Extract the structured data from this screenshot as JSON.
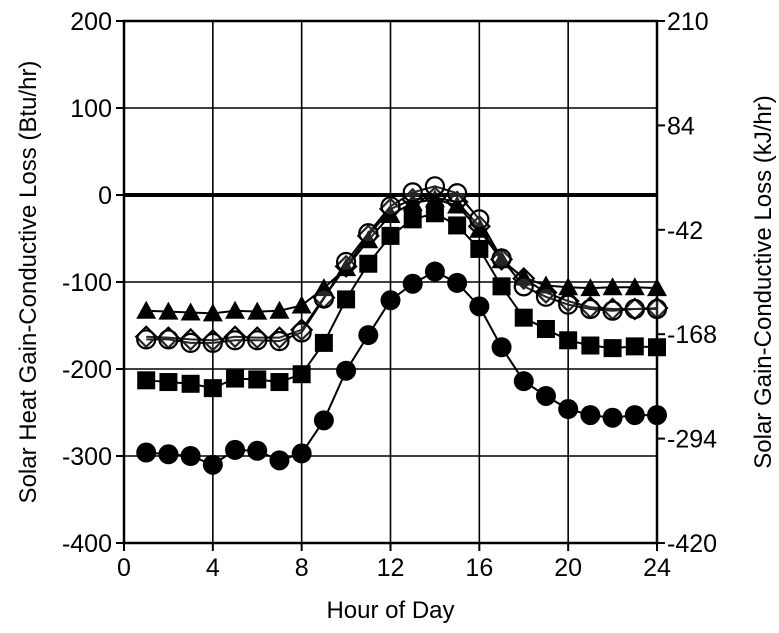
{
  "chart_data": {
    "type": "line",
    "title": "",
    "xlabel": "Hour of Day",
    "ylabel": "Solar Heat Gain-Conductive Loss (Btu/hr)",
    "ylabel_right": "Solar Gain-Conductive Loss (kJ/hr)",
    "xlim": [
      0,
      24
    ],
    "ylim": [
      -400,
      200
    ],
    "ylim_right": [
      -420,
      210
    ],
    "grid": true,
    "legend": "none",
    "x_ticks": [
      "0",
      "4",
      "8",
      "12",
      "16",
      "20",
      "24"
    ],
    "y_ticks": [
      "200",
      "100",
      "0",
      "-100",
      "-200",
      "-300",
      "-400"
    ],
    "y_ticks_right": [
      "210",
      "84",
      "-42",
      "-168",
      "-294",
      "-420"
    ],
    "x": [
      1,
      2,
      3,
      4,
      5,
      6,
      7,
      8,
      9,
      10,
      11,
      12,
      13,
      14,
      15,
      16,
      17,
      18,
      19,
      20,
      21,
      22,
      23,
      24
    ],
    "series": [
      {
        "marker": "triangle",
        "values": [
          -133,
          -134,
          -135,
          -136,
          -133,
          -134,
          -133,
          -127,
          -107,
          -84,
          -52,
          -23,
          -9,
          -5,
          -12,
          -40,
          -75,
          -95,
          -104,
          -106,
          -107,
          -106,
          -106,
          -107
        ]
      },
      {
        "marker": "diamond",
        "values": [
          -163,
          -164,
          -166,
          -167,
          -163,
          -164,
          -164,
          -155,
          -118,
          -82,
          -47,
          -16,
          -5,
          -3,
          -8,
          -36,
          -74,
          -96,
          -112,
          -122,
          -129,
          -131,
          -131,
          -130
        ]
      },
      {
        "marker": "open-circle",
        "values": [
          -166,
          -166,
          -170,
          -170,
          -167,
          -167,
          -168,
          -158,
          -119,
          -77,
          -44,
          -13,
          3,
          10,
          2,
          -28,
          -73,
          -105,
          -117,
          -126,
          -131,
          -133,
          -131,
          -131
        ]
      },
      {
        "marker": "square",
        "values": [
          -213,
          -215,
          -217,
          -222,
          -211,
          -212,
          -215,
          -206,
          -170,
          -120,
          -79,
          -47,
          -28,
          -21,
          -35,
          -62,
          -105,
          -141,
          -154,
          -167,
          -173,
          -176,
          -174,
          -175
        ]
      },
      {
        "marker": "filled-circle",
        "values": [
          -296,
          -298,
          -300,
          -310,
          -293,
          -294,
          -305,
          -297,
          -259,
          -202,
          -161,
          -121,
          -102,
          -88,
          -101,
          -128,
          -175,
          -214,
          -231,
          -246,
          -253,
          -256,
          -253,
          -253
        ]
      }
    ]
  }
}
